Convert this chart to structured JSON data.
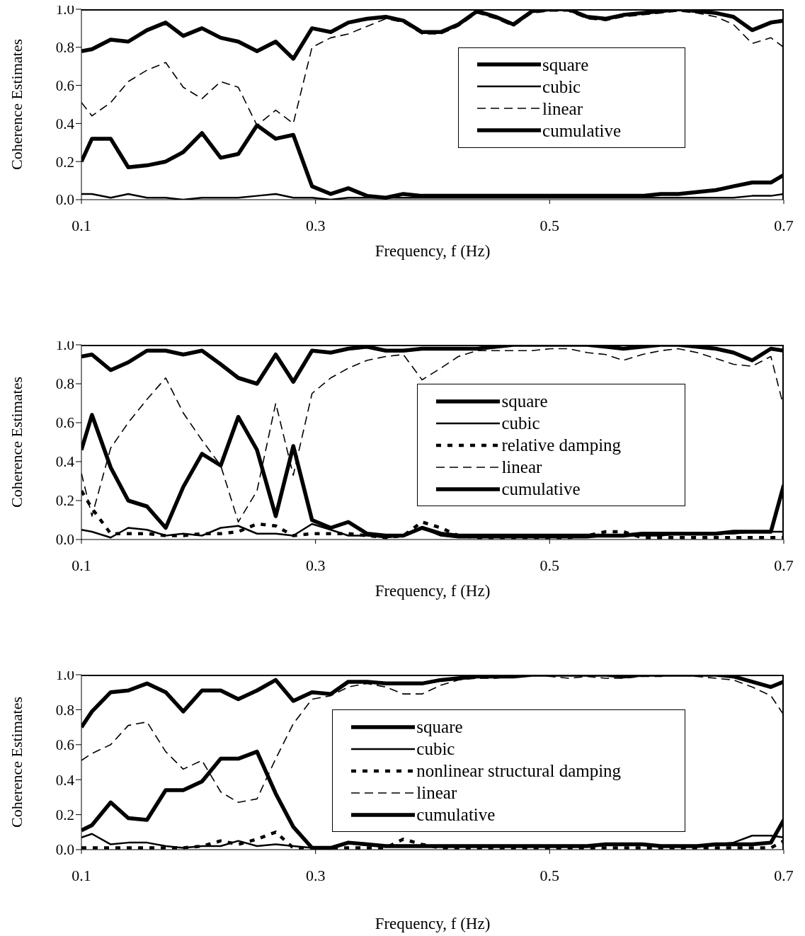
{
  "chart_data": [
    {
      "type": "line",
      "xlabel": "Frequency, f (Hz)",
      "ylabel": "Coherence Estimates",
      "x": [
        0.1,
        0.109,
        0.125,
        0.14,
        0.156,
        0.172,
        0.187,
        0.203,
        0.219,
        0.234,
        0.25,
        0.266,
        0.281,
        0.297,
        0.313,
        0.328,
        0.344,
        0.36,
        0.375,
        0.391,
        0.407,
        0.422,
        0.438,
        0.454,
        0.469,
        0.485,
        0.501,
        0.516,
        0.532,
        0.548,
        0.563,
        0.579,
        0.595,
        0.61,
        0.626,
        0.642,
        0.657,
        0.673,
        0.689,
        0.7
      ],
      "series": [
        {
          "name": "square",
          "color": "#000000",
          "line_style": "solid",
          "values": [
            0.78,
            0.79,
            0.84,
            0.83,
            0.89,
            0.93,
            0.86,
            0.9,
            0.85,
            0.83,
            0.78,
            0.83,
            0.74,
            0.9,
            0.88,
            0.93,
            0.95,
            0.96,
            0.94,
            0.88,
            0.88,
            0.92,
            0.99,
            0.96,
            0.92,
            0.99,
            1.0,
            1.0,
            0.96,
            0.95,
            0.97,
            0.98,
            0.99,
            1.0,
            0.99,
            0.98,
            0.96,
            0.89,
            0.93,
            0.94
          ]
        },
        {
          "name": "cubic",
          "color": "#000000",
          "line_style": "solid",
          "values": [
            0.03,
            0.03,
            0.01,
            0.03,
            0.01,
            0.01,
            0.0,
            0.01,
            0.01,
            0.01,
            0.02,
            0.03,
            0.01,
            0.01,
            0.0,
            0.01,
            0.01,
            0.01,
            0.01,
            0.01,
            0.01,
            0.01,
            0.01,
            0.01,
            0.01,
            0.01,
            0.01,
            0.01,
            0.01,
            0.01,
            0.01,
            0.01,
            0.01,
            0.01,
            0.01,
            0.01,
            0.01,
            0.02,
            0.02,
            0.03
          ]
        },
        {
          "name": "linear",
          "color": "#000000",
          "line_style": "dashed",
          "values": [
            0.51,
            0.44,
            0.51,
            0.62,
            0.68,
            0.72,
            0.59,
            0.53,
            0.62,
            0.59,
            0.39,
            0.47,
            0.4,
            0.8,
            0.85,
            0.87,
            0.91,
            0.95,
            0.93,
            0.87,
            0.87,
            0.91,
            0.98,
            0.95,
            0.91,
            0.98,
            0.99,
            0.99,
            0.95,
            0.94,
            0.96,
            0.97,
            0.98,
            0.99,
            0.98,
            0.96,
            0.92,
            0.82,
            0.85,
            0.8
          ]
        },
        {
          "name": "cumulative",
          "color": "#000000",
          "line_style": "solid",
          "values": [
            0.2,
            0.32,
            0.32,
            0.17,
            0.18,
            0.2,
            0.25,
            0.35,
            0.22,
            0.24,
            0.39,
            0.32,
            0.34,
            0.07,
            0.03,
            0.06,
            0.02,
            0.01,
            0.03,
            0.02,
            0.02,
            0.02,
            0.02,
            0.02,
            0.02,
            0.02,
            0.02,
            0.02,
            0.02,
            0.02,
            0.02,
            0.02,
            0.03,
            0.03,
            0.04,
            0.05,
            0.07,
            0.09,
            0.09,
            0.13
          ]
        }
      ],
      "xlim": [
        0.1,
        0.7
      ],
      "xticks": [
        0.1,
        0.3,
        0.5,
        0.7
      ],
      "ylim": [
        0,
        1
      ],
      "yticks": [
        {
          "value": 0,
          "label": "0.0"
        },
        {
          "value": 0.2,
          "label": "0.2"
        },
        {
          "value": 0.4,
          "label": "0.4"
        },
        {
          "value": 0.6,
          "label": "0.6"
        },
        {
          "value": 0.8,
          "label": "0.8"
        },
        {
          "value": 1,
          "label": "1.0"
        }
      ],
      "legend": "right",
      "grid": false
    },
    {
      "type": "line",
      "xlabel": "Frequency, f (Hz)",
      "ylabel": "Coherence Estimates",
      "x": [
        0.1,
        0.109,
        0.125,
        0.14,
        0.156,
        0.172,
        0.187,
        0.203,
        0.219,
        0.234,
        0.25,
        0.266,
        0.281,
        0.297,
        0.313,
        0.328,
        0.344,
        0.36,
        0.375,
        0.391,
        0.407,
        0.422,
        0.438,
        0.454,
        0.469,
        0.485,
        0.501,
        0.516,
        0.532,
        0.548,
        0.563,
        0.579,
        0.595,
        0.61,
        0.626,
        0.642,
        0.657,
        0.673,
        0.689,
        0.7
      ],
      "series": [
        {
          "name": "square",
          "color": "#000000",
          "line_style": "solid",
          "values": [
            0.94,
            0.95,
            0.87,
            0.91,
            0.97,
            0.97,
            0.95,
            0.97,
            0.9,
            0.83,
            0.8,
            0.95,
            0.81,
            0.97,
            0.96,
            0.98,
            0.99,
            0.97,
            0.97,
            0.98,
            0.98,
            0.98,
            0.98,
            0.99,
            1.0,
            1.0,
            1.0,
            1.0,
            1.0,
            0.99,
            0.98,
            0.99,
            1.0,
            1.0,
            0.99,
            0.98,
            0.96,
            0.92,
            0.98,
            0.97
          ]
        },
        {
          "name": "cubic",
          "color": "#000000",
          "line_style": "solid",
          "values": [
            0.05,
            0.04,
            0.01,
            0.06,
            0.05,
            0.02,
            0.03,
            0.02,
            0.06,
            0.07,
            0.03,
            0.03,
            0.02,
            0.08,
            0.05,
            0.02,
            0.02,
            0.01,
            0.02,
            0.06,
            0.02,
            0.01,
            0.01,
            0.01,
            0.01,
            0.01,
            0.01,
            0.01,
            0.01,
            0.02,
            0.02,
            0.02,
            0.02,
            0.03,
            0.03,
            0.03,
            0.03,
            0.04,
            0.04,
            0.04
          ]
        },
        {
          "name": "relative damping",
          "color": "#000000",
          "line_style": "dotted",
          "values": [
            0.25,
            0.16,
            0.03,
            0.03,
            0.03,
            0.02,
            0.02,
            0.03,
            0.03,
            0.04,
            0.08,
            0.07,
            0.02,
            0.03,
            0.03,
            0.03,
            0.02,
            0.01,
            0.02,
            0.09,
            0.06,
            0.02,
            0.01,
            0.01,
            0.01,
            0.01,
            0.01,
            0.01,
            0.02,
            0.04,
            0.04,
            0.01,
            0.01,
            0.01,
            0.01,
            0.01,
            0.01,
            0.01,
            0.01,
            0.01
          ]
        },
        {
          "name": "linear",
          "color": "#000000",
          "line_style": "dashed",
          "values": [
            0.34,
            0.12,
            0.47,
            0.6,
            0.72,
            0.83,
            0.65,
            0.51,
            0.38,
            0.09,
            0.25,
            0.7,
            0.33,
            0.75,
            0.83,
            0.88,
            0.92,
            0.94,
            0.95,
            0.82,
            0.88,
            0.94,
            0.97,
            0.97,
            0.97,
            0.97,
            0.98,
            0.98,
            0.96,
            0.95,
            0.92,
            0.95,
            0.97,
            0.98,
            0.96,
            0.93,
            0.9,
            0.89,
            0.94,
            0.68
          ]
        },
        {
          "name": "cumulative",
          "color": "#000000",
          "line_style": "solid",
          "values": [
            0.46,
            0.64,
            0.37,
            0.2,
            0.17,
            0.06,
            0.27,
            0.44,
            0.38,
            0.63,
            0.46,
            0.12,
            0.48,
            0.1,
            0.06,
            0.09,
            0.03,
            0.02,
            0.02,
            0.06,
            0.03,
            0.02,
            0.02,
            0.02,
            0.02,
            0.02,
            0.02,
            0.02,
            0.02,
            0.02,
            0.02,
            0.03,
            0.03,
            0.03,
            0.03,
            0.03,
            0.04,
            0.04,
            0.04,
            0.28
          ]
        }
      ],
      "xlim": [
        0.1,
        0.7
      ],
      "xticks": [
        0.1,
        0.3,
        0.5,
        0.7
      ],
      "ylim": [
        0,
        1
      ],
      "yticks": [
        {
          "value": 0,
          "label": "0.0"
        },
        {
          "value": 0.2,
          "label": "0.2"
        },
        {
          "value": 0.4,
          "label": "0.4"
        },
        {
          "value": 0.6,
          "label": "0.6"
        },
        {
          "value": 0.8,
          "label": "0.8"
        },
        {
          "value": 1,
          "label": "1.0"
        }
      ],
      "legend": "right",
      "grid": false
    },
    {
      "type": "line",
      "xlabel": "Frequency, f (Hz)",
      "ylabel": "Coherence Estimates",
      "x": [
        0.1,
        0.109,
        0.125,
        0.14,
        0.156,
        0.172,
        0.187,
        0.203,
        0.219,
        0.234,
        0.25,
        0.266,
        0.281,
        0.297,
        0.313,
        0.328,
        0.344,
        0.36,
        0.375,
        0.391,
        0.407,
        0.422,
        0.438,
        0.454,
        0.469,
        0.485,
        0.501,
        0.516,
        0.532,
        0.548,
        0.563,
        0.579,
        0.595,
        0.61,
        0.626,
        0.642,
        0.657,
        0.673,
        0.689,
        0.7
      ],
      "series": [
        {
          "name": "square",
          "color": "#000000",
          "line_style": "solid",
          "values": [
            0.7,
            0.79,
            0.9,
            0.91,
            0.95,
            0.9,
            0.79,
            0.91,
            0.91,
            0.86,
            0.91,
            0.97,
            0.85,
            0.9,
            0.89,
            0.96,
            0.96,
            0.95,
            0.95,
            0.95,
            0.97,
            0.98,
            0.99,
            0.99,
            0.99,
            1.0,
            1.0,
            1.0,
            1.0,
            1.0,
            0.99,
            1.0,
            1.0,
            1.0,
            1.0,
            1.0,
            0.99,
            0.96,
            0.93,
            0.96
          ]
        },
        {
          "name": "cubic",
          "color": "#000000",
          "line_style": "solid",
          "values": [
            0.07,
            0.09,
            0.03,
            0.04,
            0.04,
            0.02,
            0.01,
            0.02,
            0.02,
            0.05,
            0.02,
            0.03,
            0.02,
            0.01,
            0.01,
            0.04,
            0.03,
            0.02,
            0.02,
            0.02,
            0.02,
            0.02,
            0.02,
            0.02,
            0.02,
            0.02,
            0.02,
            0.02,
            0.02,
            0.03,
            0.03,
            0.03,
            0.02,
            0.02,
            0.02,
            0.03,
            0.04,
            0.08,
            0.08,
            0.07
          ]
        },
        {
          "name": "nonlinear structural damping",
          "color": "#000000",
          "line_style": "dotted",
          "values": [
            0.01,
            0.01,
            0.01,
            0.01,
            0.01,
            0.01,
            0.01,
            0.02,
            0.05,
            0.03,
            0.06,
            0.1,
            0.01,
            0.01,
            0.01,
            0.01,
            0.01,
            0.01,
            0.06,
            0.03,
            0.01,
            0.01,
            0.01,
            0.01,
            0.01,
            0.01,
            0.01,
            0.01,
            0.01,
            0.01,
            0.01,
            0.01,
            0.01,
            0.01,
            0.01,
            0.01,
            0.01,
            0.01,
            0.01,
            0.05
          ]
        },
        {
          "name": "linear",
          "color": "#000000",
          "line_style": "dashed",
          "values": [
            0.51,
            0.55,
            0.6,
            0.71,
            0.73,
            0.56,
            0.46,
            0.51,
            0.33,
            0.27,
            0.29,
            0.52,
            0.72,
            0.86,
            0.88,
            0.93,
            0.95,
            0.93,
            0.89,
            0.89,
            0.94,
            0.97,
            0.98,
            0.98,
            0.99,
            1.0,
            0.99,
            0.98,
            0.99,
            0.98,
            0.98,
            0.99,
            0.99,
            1.0,
            0.99,
            0.98,
            0.97,
            0.93,
            0.88,
            0.77
          ]
        },
        {
          "name": "cumulative",
          "color": "#000000",
          "line_style": "solid",
          "values": [
            0.11,
            0.14,
            0.27,
            0.18,
            0.17,
            0.34,
            0.34,
            0.39,
            0.52,
            0.52,
            0.56,
            0.32,
            0.13,
            0.01,
            0.01,
            0.04,
            0.03,
            0.02,
            0.02,
            0.02,
            0.02,
            0.02,
            0.02,
            0.02,
            0.02,
            0.02,
            0.02,
            0.02,
            0.02,
            0.03,
            0.03,
            0.03,
            0.02,
            0.02,
            0.02,
            0.03,
            0.03,
            0.03,
            0.04,
            0.17
          ]
        }
      ],
      "xlim": [
        0.1,
        0.7
      ],
      "xticks": [
        0.1,
        0.3,
        0.5,
        0.7
      ],
      "ylim": [
        0,
        1
      ],
      "yticks": [
        {
          "value": 0,
          "label": "0.0"
        },
        {
          "value": 0.2,
          "label": "0.2"
        },
        {
          "value": 0.4,
          "label": "0.4"
        },
        {
          "value": 0.6,
          "label": "0.6"
        },
        {
          "value": 0.8,
          "label": "0.8"
        },
        {
          "value": 1,
          "label": "1.0"
        }
      ],
      "legend": "right",
      "grid": false
    }
  ]
}
